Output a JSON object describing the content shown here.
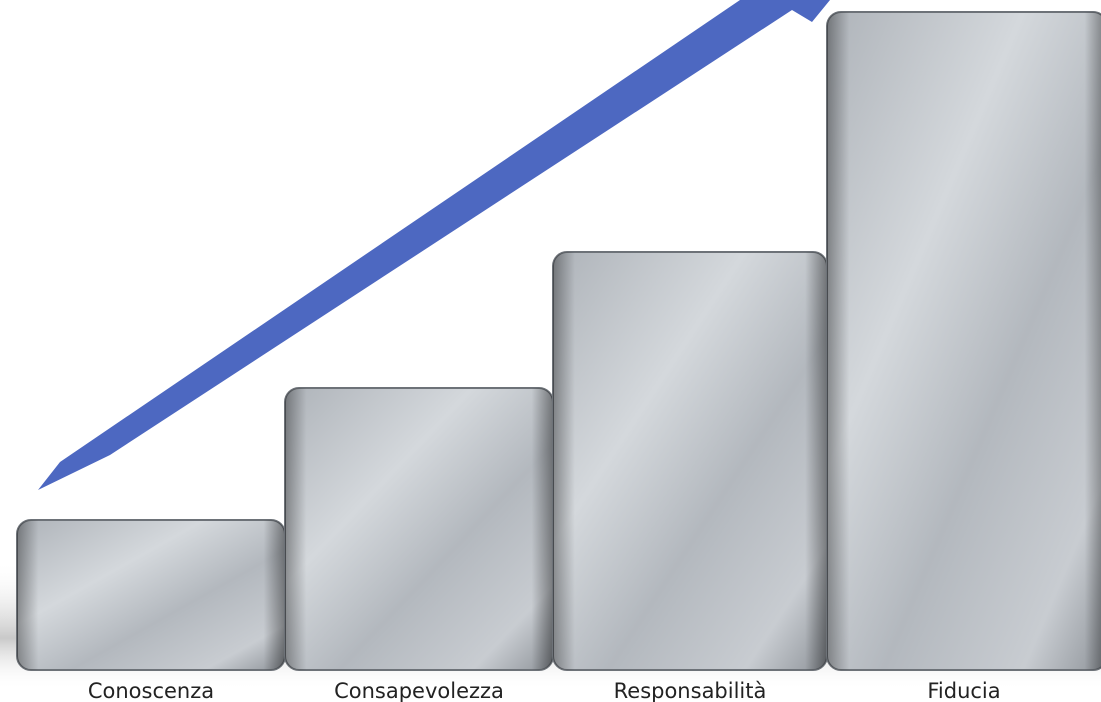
{
  "steps": [
    {
      "label": "Conoscenza"
    },
    {
      "label": "Consapevolezza"
    },
    {
      "label": "Responsabilità"
    },
    {
      "label": "Fiducia"
    }
  ]
}
